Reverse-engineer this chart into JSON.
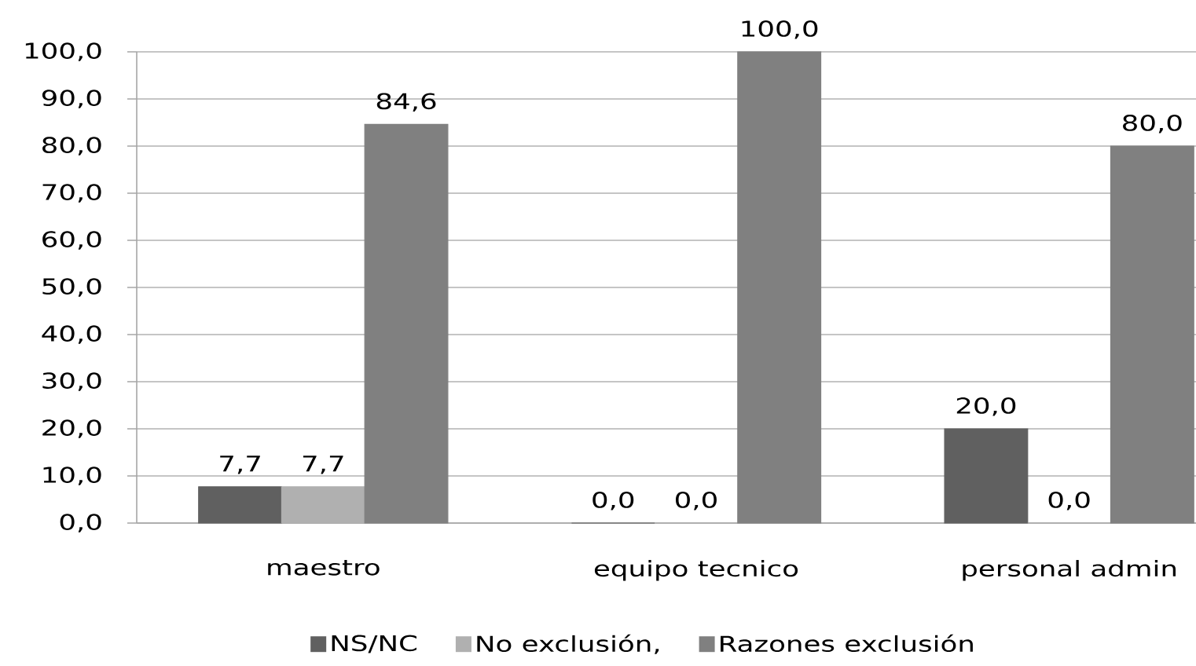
{
  "chart_data": {
    "type": "bar",
    "categories": [
      "maestro",
      "equipo tecnico",
      "personal admin"
    ],
    "series": [
      {
        "name": "NS/NC",
        "color": "#606060",
        "values": [
          7.7,
          0.0,
          20.0
        ],
        "value_labels": [
          "7,7",
          "0,0",
          "20,0"
        ]
      },
      {
        "name": "No exclusión,",
        "color": "#b0b0b0",
        "values": [
          7.7,
          0.0,
          0.0
        ],
        "value_labels": [
          "7,7",
          "0,0",
          "0,0"
        ]
      },
      {
        "name": "Razones exclusión",
        "color": "#808080",
        "values": [
          84.6,
          100.0,
          80.0
        ],
        "value_labels": [
          "84,6",
          "100,0",
          "80,0"
        ]
      }
    ],
    "ylim": [
      0,
      100
    ],
    "yticks": [
      {
        "value": 0,
        "label": "0,0"
      },
      {
        "value": 10,
        "label": "10,0"
      },
      {
        "value": 20,
        "label": "20,0"
      },
      {
        "value": 30,
        "label": "30,0"
      },
      {
        "value": 40,
        "label": "40,0"
      },
      {
        "value": 50,
        "label": "50,0"
      },
      {
        "value": 60,
        "label": "60,0"
      },
      {
        "value": 70,
        "label": "70,0"
      },
      {
        "value": 80,
        "label": "80,0"
      },
      {
        "value": 90,
        "label": "90,0"
      },
      {
        "value": 100,
        "label": "100,0"
      }
    ],
    "grid": "y",
    "legend": "bottom"
  }
}
